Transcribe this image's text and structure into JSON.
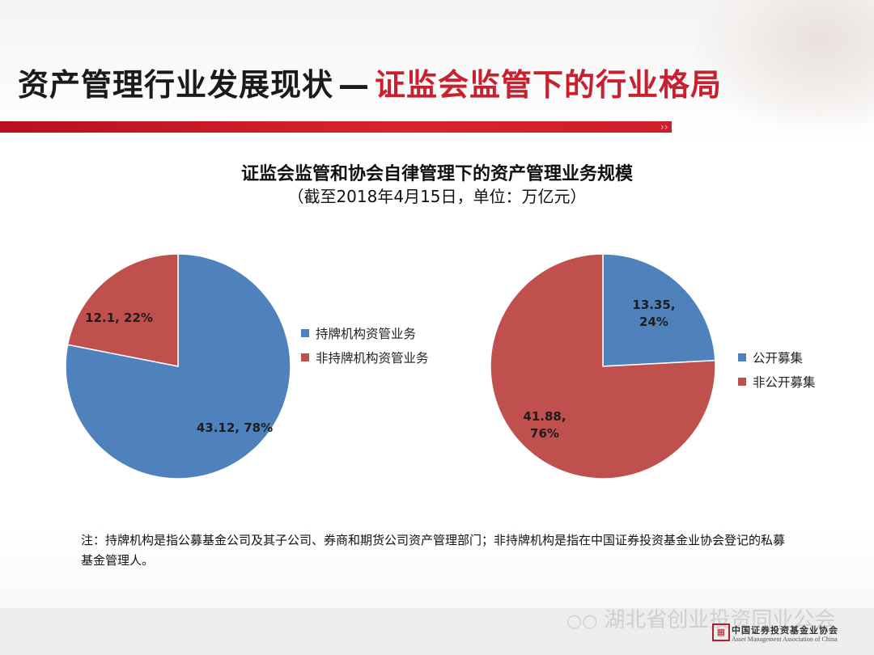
{
  "slide": {
    "title_main": "资产管理行业发展现状",
    "title_sep": "—",
    "title_accent": "证监会监管下的行业格局"
  },
  "colors": {
    "blue": "#4F81BD",
    "red": "#C0504D",
    "accent": "#C8202F"
  },
  "chart_header": {
    "title": "证监会监管和协会自律管理下的资产管理业务规模",
    "subtitle": "（截至2018年4月15日，单位：万亿元）"
  },
  "chart_data": [
    {
      "type": "pie",
      "slices": [
        {
          "name": "持牌机构资管业务",
          "value": 43.12,
          "percent": 78,
          "label_lines": [
            "43.12, 78%"
          ],
          "color": "#4F81BD"
        },
        {
          "name": "非持牌机构资管业务",
          "value": 12.1,
          "percent": 22,
          "label_lines": [
            "12.1, 22%"
          ],
          "color": "#C0504D"
        }
      ],
      "legend_position": "right"
    },
    {
      "type": "pie",
      "slices": [
        {
          "name": "公开募集",
          "value": 13.35,
          "percent": 24,
          "label_lines": [
            "13.35,",
            "24%"
          ],
          "color": "#4F81BD"
        },
        {
          "name": "非公开募集",
          "value": 41.88,
          "percent": 76,
          "label_lines": [
            "41.88,",
            "76%"
          ],
          "color": "#C0504D"
        }
      ],
      "legend_position": "right"
    }
  ],
  "note": "注：持牌机构是指公募基金公司及其子公司、券商和期货公司资产管理部门；非持牌机构是指在中国证券投资基金业协会登记的私募基金管理人。",
  "watermark": {
    "icon": "wechat-icon",
    "text": "湖北省创业投资同业公会"
  },
  "logo": {
    "cn": "中国证券投资基金业协会",
    "en": "Asset Management Association of China",
    "mark": "AMAC-seal"
  }
}
